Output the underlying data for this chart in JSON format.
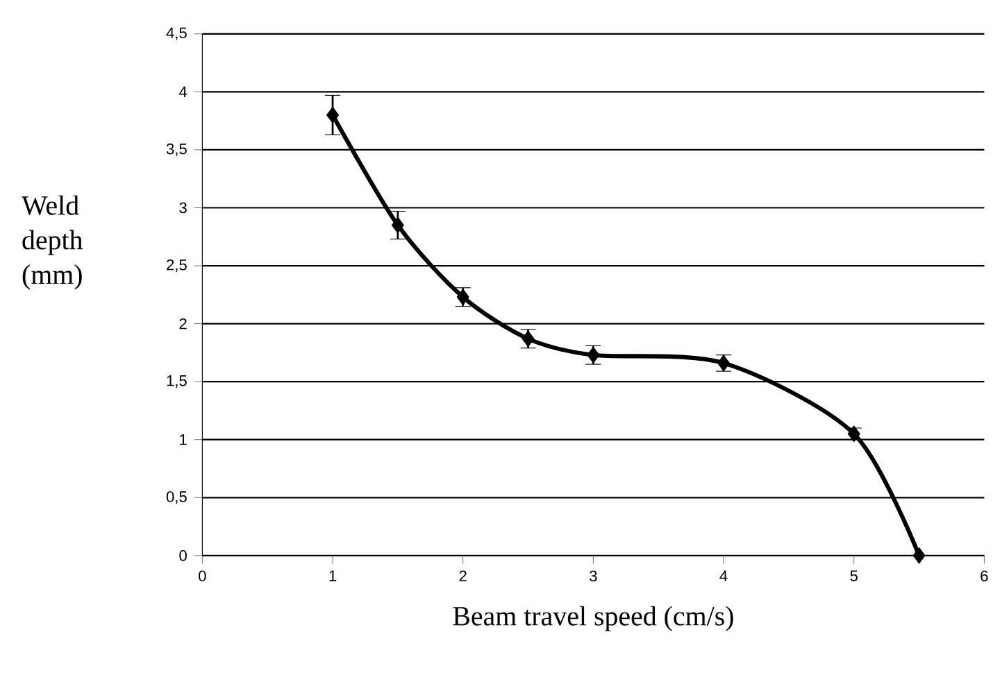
{
  "chart_data": {
    "type": "line",
    "xlabel": "Beam travel speed (cm/s)",
    "ylabel": "Weld depth (mm)",
    "x": [
      1,
      1.5,
      2,
      2.5,
      3,
      4,
      5,
      5.5
    ],
    "values": [
      3.8,
      2.85,
      2.23,
      1.87,
      1.73,
      1.66,
      1.05,
      0
    ],
    "errors": [
      0.17,
      0.12,
      0.08,
      0.08,
      0.08,
      0.07,
      0.05,
      null
    ],
    "color": "#000000",
    "marker": "diamond",
    "line_style": "solid",
    "xlim": [
      0,
      6
    ],
    "xticks": [
      0,
      1,
      2,
      3,
      4,
      5,
      6
    ],
    "ylim": [
      0,
      4.5
    ],
    "yticks": [
      0,
      {
        "value": 0.5,
        "label": "0,5"
      },
      1,
      {
        "value": 1.5,
        "label": "1,5"
      },
      2,
      {
        "value": 2.5,
        "label": "2,5"
      },
      3,
      {
        "value": 3.5,
        "label": "3,5"
      },
      4,
      {
        "value": 4.5,
        "label": "4,5"
      }
    ],
    "grid": "y"
  }
}
